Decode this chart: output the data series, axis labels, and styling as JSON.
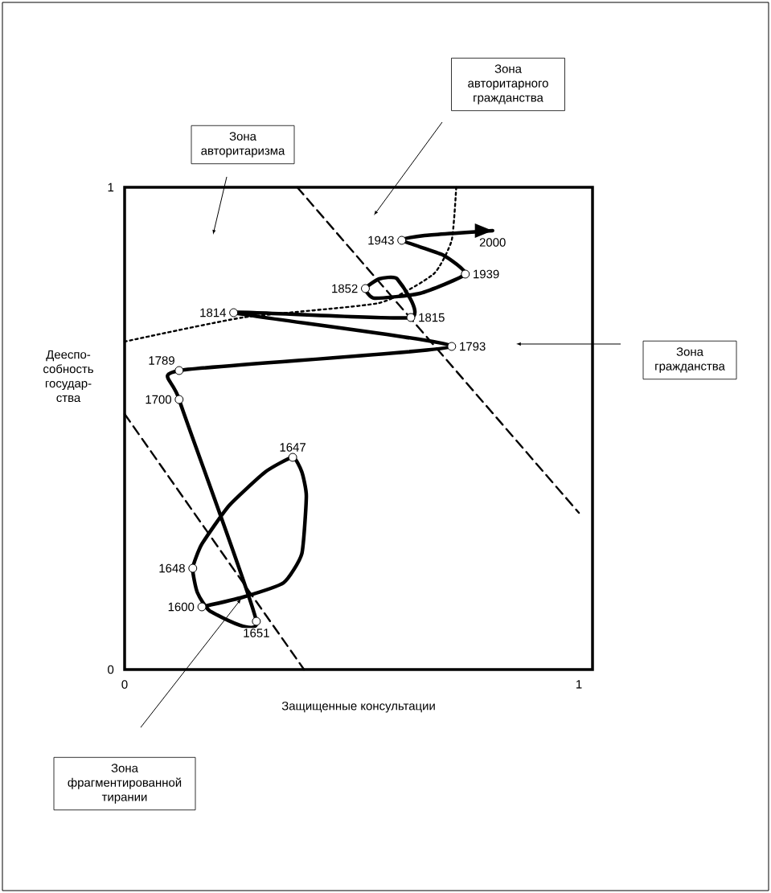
{
  "chart_data": {
    "type": "line",
    "xlabel": "Защищенные консультации",
    "ylabel": "Дееспо- собность государ- ства",
    "xlim": [
      0,
      1.03
    ],
    "ylim": [
      0,
      1
    ],
    "xticks": [
      0,
      1
    ],
    "yticks": [
      0,
      1
    ],
    "series": [
      {
        "type": "line",
        "color": "#000000",
        "line_style": "dashed",
        "x": [
          0.38,
          1.0
        ],
        "values": [
          1.0,
          0.325
        ]
      },
      {
        "type": "line",
        "color": "#000000",
        "line_style": "dashed",
        "x": [
          0.0,
          0.395
        ],
        "values": [
          0.53,
          0.0
        ]
      },
      {
        "type": "line",
        "color": "#000000",
        "line_style": "dotted",
        "x": [
          0.0,
          0.26,
          0.56,
          0.68,
          0.72,
          0.73
        ],
        "values": [
          0.68,
          0.73,
          0.76,
          0.82,
          0.89,
          1.0
        ]
      },
      {
        "color": "#000000",
        "line_style": "solid",
        "x": [
          0.17,
          0.26,
          0.35,
          0.39,
          0.4,
          0.39,
          0.37,
          0.31,
          0.23,
          0.17,
          0.15,
          0.16,
          0.19,
          0.29,
          0.12,
          0.12,
          0.72,
          0.24,
          0.63,
          0.6,
          0.56,
          0.53,
          0.55,
          0.65,
          0.75,
          0.7,
          0.61,
          0.66,
          0.81
        ],
        "values": [
          0.13,
          0.15,
          0.18,
          0.24,
          0.36,
          0.41,
          0.44,
          0.41,
          0.34,
          0.26,
          0.21,
          0.16,
          0.12,
          0.1,
          0.56,
          0.62,
          0.67,
          0.74,
          0.73,
          0.81,
          0.81,
          0.79,
          0.77,
          0.78,
          0.82,
          0.86,
          0.89,
          0.9,
          0.91
        ]
      },
      {
        "type": "scatter",
        "color": "#000000",
        "marker": "circle",
        "x": [
          0.17,
          0.37,
          0.15,
          0.29,
          0.12,
          0.12,
          0.72,
          0.24,
          0.63,
          0.53,
          0.75,
          0.61
        ],
        "values": [
          0.13,
          0.44,
          0.21,
          0.1,
          0.56,
          0.62,
          0.67,
          0.74,
          0.73,
          0.79,
          0.82,
          0.89
        ]
      }
    ],
    "annotations": [
      "Зона авторитаризма",
      "Зона авторитарного гражданства",
      "Зона гражданства",
      "Зона фрагментированной тирании",
      {
        "text": "1600",
        "x": 0.17,
        "y": 0.13
      },
      {
        "text": "1647",
        "x": 0.37,
        "y": 0.44
      },
      {
        "text": "1648",
        "x": 0.15,
        "y": 0.21
      },
      {
        "text": "1651",
        "x": 0.29,
        "y": 0.1
      },
      {
        "text": "1700",
        "x": 0.12,
        "y": 0.56
      },
      {
        "text": "1789",
        "x": 0.12,
        "y": 0.62
      },
      {
        "text": "1793",
        "x": 0.72,
        "y": 0.67
      },
      {
        "text": "1814",
        "x": 0.24,
        "y": 0.74
      },
      {
        "text": "1815",
        "x": 0.63,
        "y": 0.73
      },
      {
        "text": "1852",
        "x": 0.53,
        "y": 0.79
      },
      {
        "text": "1939",
        "x": 0.75,
        "y": 0.82
      },
      {
        "text": "1943",
        "x": 0.61,
        "y": 0.89
      },
      {
        "text": "2000",
        "x": 0.81,
        "y": 0.91
      }
    ]
  }
}
